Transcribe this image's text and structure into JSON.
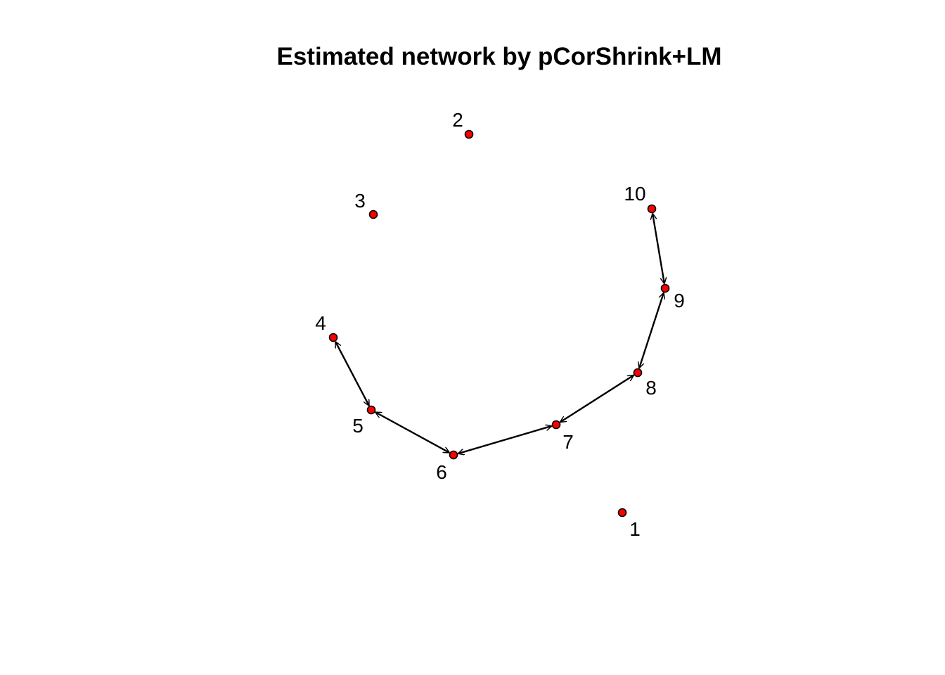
{
  "title": "Estimated network by pCorShrink+LM",
  "colors": {
    "node_fill": "#ff0000",
    "node_stroke": "#000000",
    "edge": "#000000",
    "background": "#ffffff"
  },
  "nodes": [
    {
      "id": "1",
      "label": "1"
    },
    {
      "id": "2",
      "label": "2"
    },
    {
      "id": "3",
      "label": "3"
    },
    {
      "id": "4",
      "label": "4"
    },
    {
      "id": "5",
      "label": "5"
    },
    {
      "id": "6",
      "label": "6"
    },
    {
      "id": "7",
      "label": "7"
    },
    {
      "id": "8",
      "label": "8"
    },
    {
      "id": "9",
      "label": "9"
    },
    {
      "id": "10",
      "label": "10"
    }
  ],
  "edges": [
    {
      "from": "4",
      "to": "5",
      "directed": "both"
    },
    {
      "from": "5",
      "to": "6",
      "directed": "both"
    },
    {
      "from": "6",
      "to": "7",
      "directed": "both"
    },
    {
      "from": "7",
      "to": "8",
      "directed": "both"
    },
    {
      "from": "8",
      "to": "9",
      "directed": "both"
    },
    {
      "from": "9",
      "to": "10",
      "directed": "both"
    }
  ]
}
